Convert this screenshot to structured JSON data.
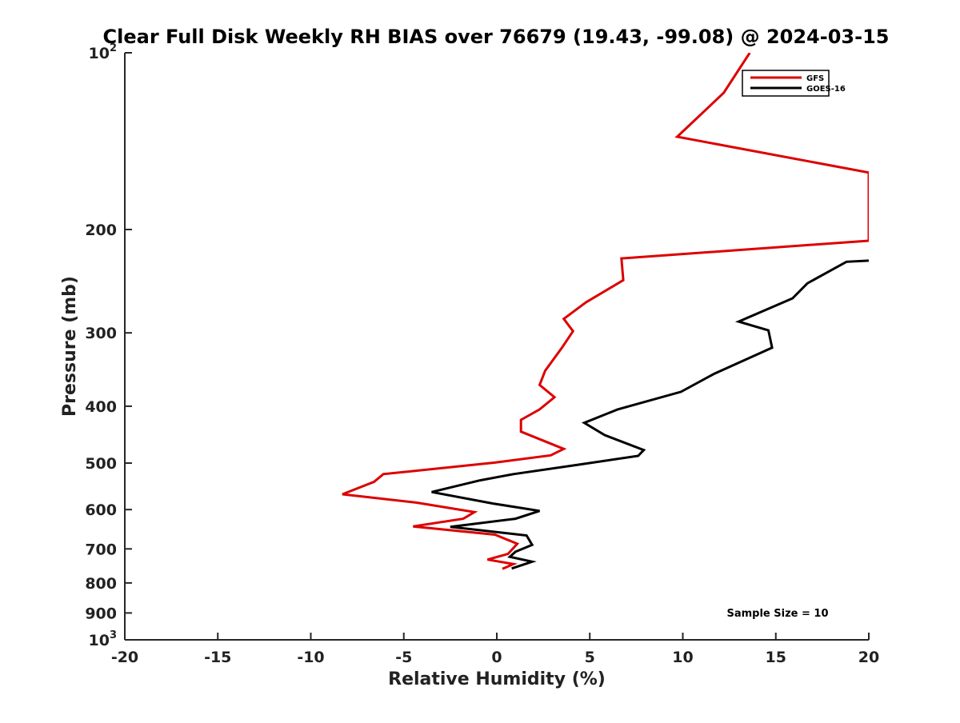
{
  "chart_data": {
    "type": "line",
    "title": "Clear Full Disk Weekly RH BIAS over 76679 (19.43, -99.08) @ 2024-03-15",
    "xlabel": "Relative Humidity (%)",
    "ylabel": "Pressure (mb)",
    "xlim": [
      -20,
      20
    ],
    "ylim": [
      100,
      1000
    ],
    "yscale": "log",
    "y_reversed": true,
    "grid": false,
    "legend_position": "top-right",
    "x_ticks": [
      "-20",
      "-15",
      "-10",
      "-5",
      "0",
      "5",
      "10",
      "15",
      "20"
    ],
    "y_ticks": [
      {
        "value": 100,
        "base": "10",
        "exp": "2"
      },
      {
        "value": 200,
        "label": "200"
      },
      {
        "value": 300,
        "label": "300"
      },
      {
        "value": 400,
        "label": "400"
      },
      {
        "value": 500,
        "label": "500"
      },
      {
        "value": 600,
        "label": "600"
      },
      {
        "value": 700,
        "label": "700"
      },
      {
        "value": 800,
        "label": "800"
      },
      {
        "value": 900,
        "label": "900"
      },
      {
        "value": 1000,
        "base": "10",
        "exp": "3"
      }
    ],
    "annotation": "Sample Size = 10",
    "series": [
      {
        "name": "GFS",
        "color": "#dd0000",
        "points": [
          [
            13.6,
            100
          ],
          [
            12.2,
            117
          ],
          [
            9.7,
            139
          ],
          [
            20.0,
            160
          ],
          [
            20.0,
            209
          ],
          [
            6.7,
            224
          ],
          [
            6.8,
            244
          ],
          [
            4.8,
            266
          ],
          [
            3.6,
            284
          ],
          [
            4.1,
            298
          ],
          [
            3.5,
            318
          ],
          [
            2.6,
            348
          ],
          [
            2.3,
            368
          ],
          [
            3.1,
            386
          ],
          [
            2.3,
            405
          ],
          [
            1.3,
            422
          ],
          [
            1.3,
            442
          ],
          [
            3.6,
            473
          ],
          [
            2.9,
            485
          ],
          [
            -0.1,
            499
          ],
          [
            -6.1,
            522
          ],
          [
            -6.6,
            538
          ],
          [
            -8.3,
            565
          ],
          [
            -4.3,
            584
          ],
          [
            -1.2,
            606
          ],
          [
            -1.8,
            622
          ],
          [
            -4.5,
            641
          ],
          [
            -0.1,
            662
          ],
          [
            1.1,
            686
          ],
          [
            0.6,
            714
          ],
          [
            -0.5,
            730
          ],
          [
            0.9,
            743
          ],
          [
            0.3,
            757
          ]
        ]
      },
      {
        "name": "GOES-16",
        "color": "#000000",
        "points": [
          [
            20.0,
            226
          ],
          [
            18.8,
            227
          ],
          [
            16.7,
            247
          ],
          [
            15.9,
            262
          ],
          [
            13.0,
            287
          ],
          [
            14.6,
            297
          ],
          [
            14.8,
            318
          ],
          [
            11.7,
            352
          ],
          [
            9.9,
            378
          ],
          [
            6.5,
            405
          ],
          [
            4.7,
            427
          ],
          [
            5.8,
            448
          ],
          [
            7.9,
            475
          ],
          [
            7.6,
            486
          ],
          [
            4.4,
            503
          ],
          [
            0.9,
            522
          ],
          [
            -0.9,
            535
          ],
          [
            -3.5,
            560
          ],
          [
            -0.2,
            586
          ],
          [
            2.3,
            603
          ],
          [
            1.0,
            622
          ],
          [
            -2.5,
            642
          ],
          [
            1.6,
            664
          ],
          [
            1.9,
            689
          ],
          [
            1.0,
            708
          ],
          [
            0.7,
            722
          ],
          [
            1.9,
            736
          ],
          [
            0.8,
            756
          ]
        ]
      }
    ]
  }
}
